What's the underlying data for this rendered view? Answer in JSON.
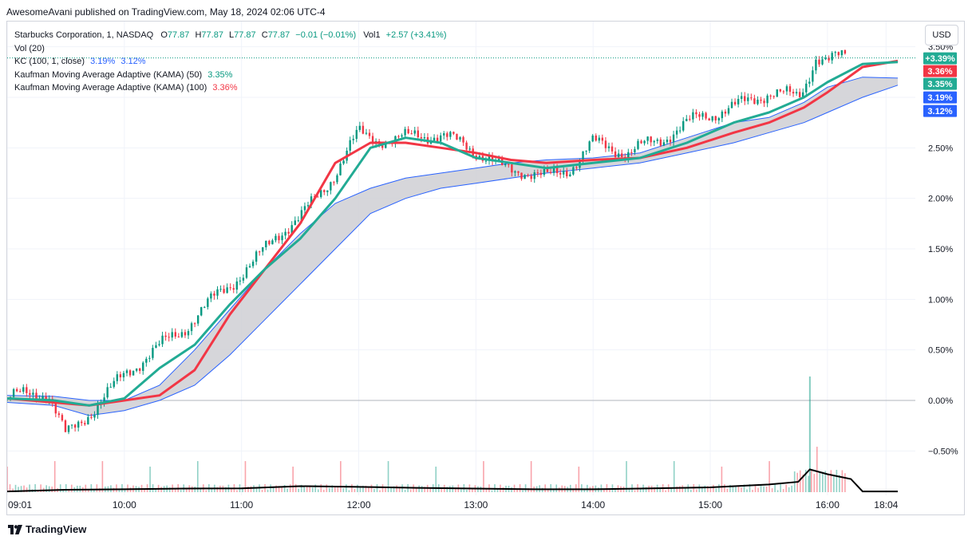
{
  "published": "AwesomeAvani published on TradingView.com, May 18, 2024 02:06 UTC-4",
  "legend": {
    "symbol": "Starbucks Corporation, 1, NASDAQ",
    "o_label": "O",
    "o_val": "77.87",
    "h_label": "H",
    "h_val": "77.87",
    "l_label": "L",
    "l_val": "77.87",
    "c_label": "C",
    "c_val": "77.87",
    "chg": "−0.01 (−0.01%)",
    "vol_label": "Vol1",
    "vol_val": "+2.57 (+3.41%)",
    "vol20": "Vol (20)",
    "kc": "KC (100, 1, close)",
    "kc_upper": "3.19%",
    "kc_lower": "3.12%",
    "kama50": "Kaufman Moving Average Adaptive (KAMA) (50)",
    "kama50_val": "3.35%",
    "kama100": "Kaufman Moving Average Adaptive (KAMA) (100)",
    "kama100_val": "3.36%"
  },
  "currency_button": "USD",
  "footer_brand": "TradingView",
  "colors": {
    "up": "#089981",
    "down": "#f23645",
    "kama50": "#22ab94",
    "kama100": "#f23645",
    "kc": "#2962ff",
    "kc_fill": "#cfcfd4",
    "volume_ma": "#000000",
    "grid": "#f0f3fa"
  },
  "chart_data": {
    "type": "line",
    "title": "",
    "y_unit": "%",
    "ylim": [
      -0.75,
      3.75
    ],
    "y_ticks": [
      {
        "v": 3.5,
        "label": "3.50%"
      },
      {
        "v": 3.0,
        "label": "3.00%"
      },
      {
        "v": 2.5,
        "label": "2.50%"
      },
      {
        "v": 2.0,
        "label": "2.00%"
      },
      {
        "v": 1.5,
        "label": "1.50%"
      },
      {
        "v": 1.0,
        "label": "1.00%"
      },
      {
        "v": 0.5,
        "label": "0.50%"
      },
      {
        "v": 0.0,
        "label": "0.00%"
      },
      {
        "v": -0.5,
        "label": "−0.50%"
      }
    ],
    "x_ticks": [
      "09:01",
      "10:00",
      "11:00",
      "12:00",
      "13:00",
      "14:00",
      "15:00",
      "16:00",
      "18:04"
    ],
    "price_path": {
      "x": [
        0,
        0.35,
        0.5,
        0.6,
        0.8,
        1.0,
        1.2,
        1.5,
        1.8,
        2.1,
        2.3,
        2.5,
        2.8,
        3.0,
        3.3,
        3.5,
        3.9,
        4.2,
        4.4,
        4.6,
        4.8,
        5.0,
        5.3,
        5.6,
        5.9,
        6.2,
        6.5,
        6.75,
        6.8,
        6.9,
        7.0,
        7.3,
        7.6
      ],
      "y": [
        0.03,
        0.08,
        -0.35,
        -0.25,
        0.0,
        0.25,
        0.45,
        0.7,
        1.05,
        1.35,
        1.65,
        1.8,
        2.25,
        2.65,
        2.55,
        2.65,
        2.55,
        2.3,
        2.28,
        2.2,
        2.3,
        2.55,
        2.45,
        2.6,
        2.8,
        2.9,
        3.05,
        3.0,
        3.1,
        3.4,
        3.35,
        3.48,
        3.39
      ]
    },
    "series": [
      {
        "name": "Kaufman Moving Average Adaptive (KAMA) (50)",
        "x": [
          0,
          0.4,
          0.7,
          1.0,
          1.3,
          1.6,
          1.9,
          2.2,
          2.5,
          2.8,
          3.1,
          3.4,
          3.7,
          4.0,
          4.3,
          4.6,
          5.0,
          5.4,
          5.8,
          6.2,
          6.5,
          6.8,
          7.0,
          7.3,
          7.6
        ],
        "values": [
          0.02,
          0.0,
          -0.05,
          0.02,
          0.32,
          0.55,
          0.95,
          1.3,
          1.6,
          2.0,
          2.5,
          2.6,
          2.55,
          2.4,
          2.35,
          2.3,
          2.35,
          2.4,
          2.55,
          2.75,
          2.85,
          3.0,
          3.15,
          3.33,
          3.35
        ]
      },
      {
        "name": "Kaufman Moving Average Adaptive (KAMA) (100)",
        "x": [
          0,
          0.4,
          0.7,
          1.0,
          1.3,
          1.6,
          1.9,
          2.2,
          2.5,
          2.8,
          3.1,
          3.4,
          3.7,
          4.0,
          4.3,
          4.6,
          5.0,
          5.4,
          5.8,
          6.2,
          6.5,
          6.8,
          7.0,
          7.3,
          7.6
        ],
        "values": [
          0.02,
          -0.02,
          -0.05,
          0.0,
          0.05,
          0.3,
          0.85,
          1.3,
          1.75,
          2.35,
          2.55,
          2.55,
          2.5,
          2.45,
          2.38,
          2.35,
          2.38,
          2.4,
          2.5,
          2.65,
          2.75,
          2.9,
          3.05,
          3.3,
          3.36
        ]
      },
      {
        "name": "KC upper",
        "x": [
          0,
          0.4,
          0.7,
          1.0,
          1.3,
          1.6,
          1.9,
          2.2,
          2.5,
          2.8,
          3.1,
          3.4,
          3.7,
          4.0,
          4.3,
          4.6,
          5.0,
          5.4,
          5.8,
          6.2,
          6.5,
          6.8,
          7.0,
          7.3,
          7.6
        ],
        "values": [
          0.05,
          0.04,
          0.0,
          0.0,
          0.15,
          0.5,
          0.9,
          1.3,
          1.65,
          1.95,
          2.1,
          2.2,
          2.25,
          2.3,
          2.35,
          2.38,
          2.4,
          2.45,
          2.6,
          2.75,
          2.8,
          2.95,
          3.1,
          3.2,
          3.19
        ]
      },
      {
        "name": "KC lower",
        "x": [
          0,
          0.4,
          0.7,
          1.0,
          1.3,
          1.6,
          1.9,
          2.2,
          2.5,
          2.8,
          3.1,
          3.4,
          3.7,
          4.0,
          4.3,
          4.6,
          5.0,
          5.4,
          5.8,
          6.2,
          6.5,
          6.8,
          7.0,
          7.3,
          7.6
        ],
        "values": [
          -0.02,
          -0.05,
          -0.15,
          -0.1,
          0.0,
          0.15,
          0.45,
          0.8,
          1.15,
          1.5,
          1.85,
          2.0,
          2.1,
          2.15,
          2.2,
          2.25,
          2.3,
          2.35,
          2.45,
          2.55,
          2.65,
          2.75,
          2.85,
          3.0,
          3.12
        ]
      }
    ],
    "price_labels": [
      {
        "label": "+3.39%",
        "v": 3.39,
        "color": "#22ab94"
      },
      {
        "label": "3.36%",
        "v": 3.36,
        "color": "#f23645"
      },
      {
        "label": "3.35%",
        "v": 3.35,
        "color": "#22ab94"
      },
      {
        "label": "3.19%",
        "v": 3.19,
        "color": "#2962ff"
      },
      {
        "label": "3.12%",
        "v": 3.12,
        "color": "#2962ff"
      }
    ],
    "volume": {
      "x": [
        0,
        0.5,
        1.0,
        1.5,
        2.0,
        2.5,
        3.0,
        3.5,
        4.0,
        4.5,
        5.0,
        5.5,
        6.0,
        6.5,
        6.75,
        6.85,
        7.0,
        7.2,
        7.3,
        7.6
      ],
      "ma": [
        0.3,
        1.0,
        1.2,
        1.5,
        1.6,
        2.5,
        2.2,
        1.8,
        1.5,
        1.2,
        1.2,
        1.6,
        2.0,
        3.2,
        4.3,
        9.5,
        7.5,
        5.5,
        0.3,
        0.3
      ]
    }
  }
}
